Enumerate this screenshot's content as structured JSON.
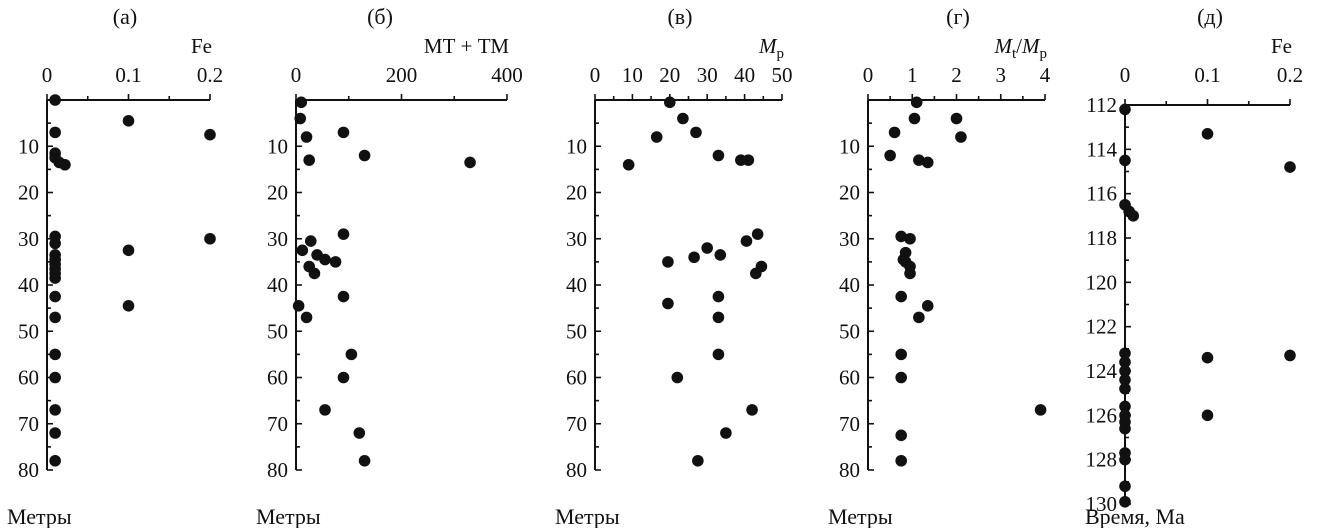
{
  "chart_data": [
    {
      "type": "scatter",
      "panel_label": "(а)",
      "xlabel": "Fe",
      "xlabel_parts": [
        {
          "t": "Fe",
          "sub": false,
          "italic": false
        }
      ],
      "xlim": [
        0,
        0.2
      ],
      "xticks": [
        0,
        0.1,
        0.2
      ],
      "xticklabels": [
        "0",
        "0.1",
        "0.2"
      ],
      "ylim": [
        0,
        80
      ],
      "yticks": [
        10,
        20,
        30,
        40,
        50,
        60,
        70,
        80
      ],
      "yticklabels": [
        "10",
        "20",
        "30",
        "40",
        "50",
        "60",
        "70",
        "80"
      ],
      "ylabel": "Метры",
      "points": [
        [
          0.01,
          0
        ],
        [
          0.1,
          4.5
        ],
        [
          0.2,
          7.5
        ],
        [
          0.01,
          7
        ],
        [
          0.01,
          11.5
        ],
        [
          0.01,
          12.5
        ],
        [
          0.015,
          13.5
        ],
        [
          0.022,
          14
        ],
        [
          0.01,
          29.5
        ],
        [
          0.01,
          31
        ],
        [
          0.2,
          30
        ],
        [
          0.1,
          32.5
        ],
        [
          0.01,
          33.5
        ],
        [
          0.01,
          34.5
        ],
        [
          0.01,
          35.5
        ],
        [
          0.01,
          36.5
        ],
        [
          0.01,
          37.5
        ],
        [
          0.01,
          38.5
        ],
        [
          0.01,
          42.5
        ],
        [
          0.1,
          44.5
        ],
        [
          0.01,
          47
        ],
        [
          0.01,
          55
        ],
        [
          0.01,
          60
        ],
        [
          0.01,
          67
        ],
        [
          0.01,
          72
        ],
        [
          0.01,
          78
        ]
      ]
    },
    {
      "type": "scatter",
      "panel_label": "(б)",
      "xlabel": "МТ + ТМ",
      "xlabel_parts": [
        {
          "t": "МТ + ТМ",
          "sub": false,
          "italic": false
        }
      ],
      "xlim": [
        0,
        400
      ],
      "xticks": [
        0,
        200,
        400
      ],
      "xticklabels": [
        "0",
        "200",
        "400"
      ],
      "ylim": [
        0,
        80
      ],
      "yticks": [
        10,
        20,
        30,
        40,
        50,
        60,
        70,
        80
      ],
      "yticklabels": [
        "10",
        "20",
        "30",
        "40",
        "50",
        "60",
        "70",
        "80"
      ],
      "ylabel": "Метры",
      "points": [
        [
          10,
          0.5
        ],
        [
          8,
          4
        ],
        [
          20,
          8
        ],
        [
          90,
          7
        ],
        [
          130,
          12
        ],
        [
          25,
          13
        ],
        [
          330,
          13.5
        ],
        [
          90,
          29
        ],
        [
          28,
          30.5
        ],
        [
          12,
          32.5
        ],
        [
          40,
          33.5
        ],
        [
          55,
          34.5
        ],
        [
          75,
          35
        ],
        [
          25,
          36
        ],
        [
          35,
          37.5
        ],
        [
          90,
          42.5
        ],
        [
          5,
          44.5
        ],
        [
          20,
          47
        ],
        [
          105,
          55
        ],
        [
          90,
          60
        ],
        [
          55,
          67
        ],
        [
          120,
          72
        ],
        [
          130,
          78
        ]
      ]
    },
    {
      "type": "scatter",
      "panel_label": "(в)",
      "xlabel": "Mp",
      "xlabel_parts": [
        {
          "t": "M",
          "sub": false,
          "italic": true
        },
        {
          "t": "p",
          "sub": true,
          "italic": false
        }
      ],
      "xlim": [
        0,
        50
      ],
      "xticks": [
        0,
        10,
        20,
        30,
        40,
        50
      ],
      "xticklabels": [
        "0",
        "10",
        "20",
        "30",
        "40",
        "50"
      ],
      "ylim": [
        0,
        80
      ],
      "yticks": [
        10,
        20,
        30,
        40,
        50,
        60,
        70,
        80
      ],
      "yticklabels": [
        "10",
        "20",
        "30",
        "40",
        "50",
        "60",
        "70",
        "80"
      ],
      "ylabel": "Метры",
      "points": [
        [
          20,
          0.5
        ],
        [
          23.5,
          4
        ],
        [
          27,
          7
        ],
        [
          16.5,
          8
        ],
        [
          9,
          14
        ],
        [
          33,
          12
        ],
        [
          39,
          13
        ],
        [
          41,
          13
        ],
        [
          43.5,
          29
        ],
        [
          40.5,
          30.5
        ],
        [
          30,
          32
        ],
        [
          33.5,
          33.5
        ],
        [
          26.5,
          34
        ],
        [
          19.5,
          35
        ],
        [
          44.5,
          36
        ],
        [
          43,
          37.5
        ],
        [
          33,
          42.5
        ],
        [
          19.5,
          44
        ],
        [
          33,
          47
        ],
        [
          33,
          55
        ],
        [
          22,
          60
        ],
        [
          42,
          67
        ],
        [
          35,
          72
        ],
        [
          27.5,
          78
        ]
      ]
    },
    {
      "type": "scatter",
      "panel_label": "(г)",
      "xlabel": "Mt/Mp",
      "xlabel_parts": [
        {
          "t": "M",
          "sub": false,
          "italic": true
        },
        {
          "t": "t",
          "sub": true,
          "italic": false
        },
        {
          "t": "/",
          "sub": false,
          "italic": false
        },
        {
          "t": "M",
          "sub": false,
          "italic": true
        },
        {
          "t": "p",
          "sub": true,
          "italic": false
        }
      ],
      "xlim": [
        0,
        4
      ],
      "xticks": [
        0,
        1,
        2,
        3,
        4
      ],
      "xticklabels": [
        "0",
        "1",
        "2",
        "3",
        "4"
      ],
      "ylim": [
        0,
        80
      ],
      "yticks": [
        10,
        20,
        30,
        40,
        50,
        60,
        70,
        80
      ],
      "yticklabels": [
        "10",
        "20",
        "30",
        "40",
        "50",
        "60",
        "70",
        "80"
      ],
      "ylabel": "Метры",
      "points": [
        [
          1.1,
          0.5
        ],
        [
          1.05,
          4
        ],
        [
          2,
          4
        ],
        [
          0.6,
          7
        ],
        [
          2.1,
          8
        ],
        [
          0.5,
          12
        ],
        [
          1.15,
          13
        ],
        [
          1.35,
          13.5
        ],
        [
          0.75,
          29.5
        ],
        [
          0.95,
          30
        ],
        [
          0.85,
          33
        ],
        [
          0.8,
          34.5
        ],
        [
          0.85,
          35
        ],
        [
          0.95,
          36
        ],
        [
          0.95,
          37.5
        ],
        [
          0.75,
          42.5
        ],
        [
          1.35,
          44.5
        ],
        [
          1.15,
          47
        ],
        [
          0.75,
          55
        ],
        [
          0.75,
          60
        ],
        [
          3.9,
          67
        ],
        [
          0.75,
          72.5
        ],
        [
          0.75,
          78
        ]
      ]
    },
    {
      "type": "scatter",
      "panel_label": "(д)",
      "xlabel": "Fe",
      "xlabel_parts": [
        {
          "t": "Fe",
          "sub": false,
          "italic": false
        }
      ],
      "xlim": [
        0,
        0.2
      ],
      "xticks": [
        0,
        0.1,
        0.2
      ],
      "xticklabels": [
        "0",
        "0.1",
        "0.2"
      ],
      "ylim": [
        112,
        130
      ],
      "yticks": [
        112,
        114,
        116,
        118,
        120,
        122,
        124,
        126,
        128,
        130
      ],
      "yticklabels": [
        "112",
        "114",
        "116",
        "118",
        "120",
        "122",
        "124",
        "126",
        "128",
        "130"
      ],
      "ylabel": "Время, Ма",
      "points": [
        [
          0.0,
          112.2
        ],
        [
          0.1,
          113.3
        ],
        [
          0.2,
          114.8
        ],
        [
          0.0,
          114.5
        ],
        [
          0.0,
          116.5
        ],
        [
          0.005,
          116.8
        ],
        [
          0.01,
          117
        ],
        [
          0.0,
          123.2
        ],
        [
          0.0,
          123.6
        ],
        [
          0.1,
          123.4
        ],
        [
          0.2,
          123.3
        ],
        [
          0.0,
          124
        ],
        [
          0.0,
          124.4
        ],
        [
          0.0,
          124.8
        ],
        [
          0.0,
          125.6
        ],
        [
          0.0,
          126
        ],
        [
          0.1,
          126
        ],
        [
          0.0,
          126.3
        ],
        [
          0.0,
          126.6
        ],
        [
          0.0,
          127.7
        ],
        [
          0.0,
          128
        ],
        [
          0.0,
          129.2
        ],
        [
          0.0,
          129.9
        ]
      ]
    }
  ]
}
